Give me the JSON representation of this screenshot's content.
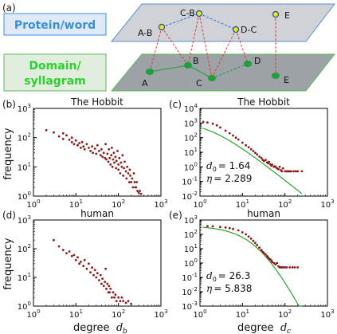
{
  "panel_labels": {
    "a": "(a)",
    "b": "(b)",
    "c": "(c)",
    "d": "(d)",
    "e": "(e)"
  },
  "schematic": {
    "top_layer_label": "Protein/word",
    "bottom_layer_label_line1": "Domain/",
    "bottom_layer_label_line2": "syllagram",
    "top_nodes": [
      "A-B",
      "C-B",
      "D-C",
      "E"
    ],
    "bottom_nodes": [
      "A",
      "B",
      "C",
      "D",
      "E"
    ],
    "colors": {
      "top_plane": "#cfd2d6",
      "bottom_plane": "#9da2a6",
      "top_border": "#5b8fd1",
      "bottom_border": "#5cb85c",
      "node": "#1f9e3a",
      "top_node_fill": "#f2e51f",
      "link": "#e63b3b",
      "top_label_color": "#3a8fd9",
      "bottom_label_color": "#2fcf2f"
    }
  },
  "axis_labels": {
    "frequency_b": "frequency",
    "frequency_d": "frequency",
    "degree_db": "degree",
    "degree_db_var": "d",
    "degree_db_sub": "b",
    "degree_dc": "degree",
    "degree_dc_var": "d",
    "degree_dc_sub": "c"
  },
  "chart_data": [
    {
      "id": "b",
      "type": "scatter",
      "title": "The Hobbit",
      "xscale": "log",
      "yscale": "log",
      "xlim": [
        1,
        1000
      ],
      "ylim": [
        1,
        1000
      ],
      "x_ticks": [
        "10^0",
        "10^1",
        "10^2",
        "10^3"
      ],
      "y_ticks": [
        "10^0",
        "10^1",
        "10^2",
        "10^3"
      ],
      "marker_color": "#8b1a1a",
      "series": [
        {
          "points": [
            [
              2,
              180
            ],
            [
              3,
              150
            ],
            [
              4,
              110
            ],
            [
              5,
              140
            ],
            [
              5,
              90
            ],
            [
              6,
              120
            ],
            [
              7,
              85
            ],
            [
              8,
              100
            ],
            [
              8,
              70
            ],
            [
              9,
              60
            ],
            [
              10,
              80
            ],
            [
              11,
              55
            ],
            [
              12,
              65
            ],
            [
              13,
              45
            ],
            [
              14,
              70
            ],
            [
              15,
              50
            ],
            [
              16,
              40
            ],
            [
              18,
              60
            ],
            [
              20,
              45
            ],
            [
              22,
              35
            ],
            [
              24,
              50
            ],
            [
              25,
              30
            ],
            [
              28,
              42
            ],
            [
              30,
              28
            ],
            [
              32,
              55
            ],
            [
              35,
              35
            ],
            [
              38,
              25
            ],
            [
              40,
              40
            ],
            [
              42,
              22
            ],
            [
              45,
              30
            ],
            [
              48,
              20
            ],
            [
              50,
              60
            ],
            [
              52,
              18
            ],
            [
              55,
              28
            ],
            [
              58,
              15
            ],
            [
              60,
              40
            ],
            [
              62,
              20
            ],
            [
              65,
              12
            ],
            [
              68,
              25
            ],
            [
              70,
              45
            ],
            [
              72,
              10
            ],
            [
              75,
              18
            ],
            [
              78,
              30
            ],
            [
              80,
              14
            ],
            [
              85,
              22
            ],
            [
              88,
              9
            ],
            [
              90,
              16
            ],
            [
              95,
              35
            ],
            [
              100,
              12
            ],
            [
              100,
              8
            ],
            [
              105,
              20
            ],
            [
              110,
              6
            ],
            [
              115,
              14
            ],
            [
              120,
              10
            ],
            [
              125,
              25
            ],
            [
              130,
              5
            ],
            [
              135,
              9
            ],
            [
              140,
              15
            ],
            [
              150,
              7
            ],
            [
              155,
              4
            ],
            [
              160,
              10
            ],
            [
              170,
              6
            ],
            [
              180,
              3
            ],
            [
              185,
              8
            ],
            [
              190,
              5
            ],
            [
              200,
              3
            ],
            [
              210,
              4
            ],
            [
              220,
              2
            ],
            [
              230,
              6
            ],
            [
              240,
              3
            ],
            [
              250,
              2
            ],
            [
              260,
              2
            ],
            [
              270,
              3
            ],
            [
              280,
              1.5
            ],
            [
              300,
              1.3
            ],
            [
              320,
              1.5
            ],
            [
              340,
              1.2
            ]
          ]
        }
      ]
    },
    {
      "id": "c",
      "type": "scatter",
      "title": "The Hobbit",
      "xscale": "log",
      "yscale": "log",
      "xlim": [
        1,
        1000
      ],
      "ylim": [
        0.01,
        10000
      ],
      "x_ticks": [
        "10^0",
        "10^1",
        "10^2",
        "10^3"
      ],
      "y_ticks": [
        "10^-2",
        "10^-1",
        "10^0",
        "10^1",
        "10^2",
        "10^3",
        "10^4"
      ],
      "marker_color": "#8b1a1a",
      "fit_color": "#2ca02c",
      "fit": {
        "d0": 1.64,
        "eta": 2.289,
        "scale": 1500
      },
      "annotation": {
        "d0_label": "d",
        "d0_sub": "0",
        "d0_value": "= 1.64",
        "eta_label": "η",
        "eta_value": "= 2.289"
      },
      "series": [
        {
          "points": [
            [
              1.2,
              1200
            ],
            [
              1.5,
              1100
            ],
            [
              2,
              900
            ],
            [
              2.5,
              700
            ],
            [
              3,
              500
            ],
            [
              4,
              300
            ],
            [
              5,
              200
            ],
            [
              6,
              140
            ],
            [
              7,
              100
            ],
            [
              8,
              75
            ],
            [
              10,
              45
            ],
            [
              12,
              30
            ],
            [
              14,
              22
            ],
            [
              16,
              16
            ],
            [
              18,
              12
            ],
            [
              20,
              9
            ],
            [
              22,
              7
            ],
            [
              25,
              5
            ],
            [
              28,
              4
            ],
            [
              30,
              3
            ],
            [
              32,
              2.5
            ],
            [
              35,
              3
            ],
            [
              38,
              2
            ],
            [
              40,
              1.8
            ],
            [
              42,
              2.2
            ],
            [
              45,
              1.5
            ],
            [
              48,
              1.2
            ],
            [
              50,
              1.4
            ],
            [
              55,
              1
            ],
            [
              58,
              1.1
            ],
            [
              60,
              1
            ],
            [
              65,
              0.8
            ],
            [
              70,
              0.7
            ],
            [
              75,
              1
            ],
            [
              80,
              0.6
            ],
            [
              85,
              0.5
            ],
            [
              90,
              0.8
            ],
            [
              100,
              0.5
            ],
            [
              110,
              0.5
            ],
            [
              120,
              0.5
            ],
            [
              130,
              0.5
            ],
            [
              140,
              0.5
            ],
            [
              160,
              0.5
            ],
            [
              180,
              0.5
            ],
            [
              200,
              0.5
            ],
            [
              250,
              0.5
            ]
          ]
        }
      ]
    },
    {
      "id": "d",
      "type": "scatter",
      "title": "human",
      "xscale": "log",
      "yscale": "log",
      "xlim": [
        1,
        1000
      ],
      "ylim": [
        1,
        1000
      ],
      "x_ticks": [
        "10^0",
        "10^1",
        "10^2",
        "10^3"
      ],
      "y_ticks": [
        "10^0",
        "10^1",
        "10^2",
        "10^3"
      ],
      "marker_color": "#8b1a1a",
      "series": [
        {
          "points": [
            [
              3,
              200
            ],
            [
              4,
              120
            ],
            [
              5,
              90
            ],
            [
              6,
              70
            ],
            [
              7,
              80
            ],
            [
              8,
              55
            ],
            [
              9,
              60
            ],
            [
              10,
              40
            ],
            [
              11,
              50
            ],
            [
              12,
              30
            ],
            [
              13,
              35
            ],
            [
              15,
              25
            ],
            [
              16,
              40
            ],
            [
              18,
              20
            ],
            [
              20,
              30
            ],
            [
              22,
              15
            ],
            [
              24,
              22
            ],
            [
              26,
              12
            ],
            [
              28,
              18
            ],
            [
              30,
              10
            ],
            [
              32,
              14
            ],
            [
              35,
              8
            ],
            [
              38,
              12
            ],
            [
              40,
              6
            ],
            [
              42,
              9
            ],
            [
              45,
              5
            ],
            [
              48,
              7
            ],
            [
              50,
              20
            ],
            [
              52,
              4
            ],
            [
              55,
              6
            ],
            [
              58,
              3
            ],
            [
              60,
              5
            ],
            [
              62,
              3
            ],
            [
              65,
              4
            ],
            [
              70,
              2
            ],
            [
              75,
              3
            ],
            [
              80,
              2
            ],
            [
              85,
              2.5
            ],
            [
              90,
              1.5
            ],
            [
              100,
              2
            ],
            [
              110,
              1.5
            ],
            [
              120,
              2
            ],
            [
              130,
              1.5
            ],
            [
              150,
              1.3
            ],
            [
              170,
              1.5
            ],
            [
              200,
              1.2
            ]
          ]
        }
      ]
    },
    {
      "id": "e",
      "type": "scatter",
      "title": "human",
      "xscale": "log",
      "yscale": "log",
      "xlim": [
        1,
        1000
      ],
      "ylim": [
        0.001,
        1000
      ],
      "x_ticks": [
        "10^0",
        "10^1",
        "10^2",
        "10^3"
      ],
      "y_ticks": [
        "10^-3",
        "10^-2",
        "10^-1",
        "10^0",
        "10^1",
        "10^2",
        "10^3"
      ],
      "marker_color": "#8b1a1a",
      "fit_color": "#2ca02c",
      "fit": {
        "d0": 26.3,
        "eta": 5.838,
        "scale": 400
      },
      "annotation": {
        "d0_label": "d",
        "d0_sub": "0",
        "d0_value": "= 26.3",
        "eta_label": "η",
        "eta_value": "= 5.838"
      },
      "series": [
        {
          "points": [
            [
              1.5,
              380
            ],
            [
              2,
              360
            ],
            [
              3,
              330
            ],
            [
              4,
              300
            ],
            [
              5,
              270
            ],
            [
              6,
              240
            ],
            [
              8,
              190
            ],
            [
              10,
              140
            ],
            [
              12,
              100
            ],
            [
              14,
              70
            ],
            [
              16,
              50
            ],
            [
              18,
              35
            ],
            [
              20,
              25
            ],
            [
              22,
              18
            ],
            [
              25,
              12
            ],
            [
              28,
              8
            ],
            [
              30,
              6
            ],
            [
              32,
              5
            ],
            [
              35,
              4
            ],
            [
              38,
              3
            ],
            [
              40,
              2.5
            ],
            [
              42,
              2
            ],
            [
              45,
              1.8
            ],
            [
              48,
              1.5
            ],
            [
              50,
              1.2
            ],
            [
              55,
              1
            ],
            [
              60,
              0.8
            ],
            [
              65,
              1
            ],
            [
              70,
              0.6
            ],
            [
              75,
              0.5
            ],
            [
              80,
              0.5
            ],
            [
              85,
              0.5
            ],
            [
              90,
              0.5
            ],
            [
              100,
              0.5
            ],
            [
              110,
              0.5
            ],
            [
              130,
              0.5
            ],
            [
              150,
              0.5
            ],
            [
              170,
              0.5
            ],
            [
              200,
              0.5
            ]
          ]
        }
      ]
    }
  ]
}
